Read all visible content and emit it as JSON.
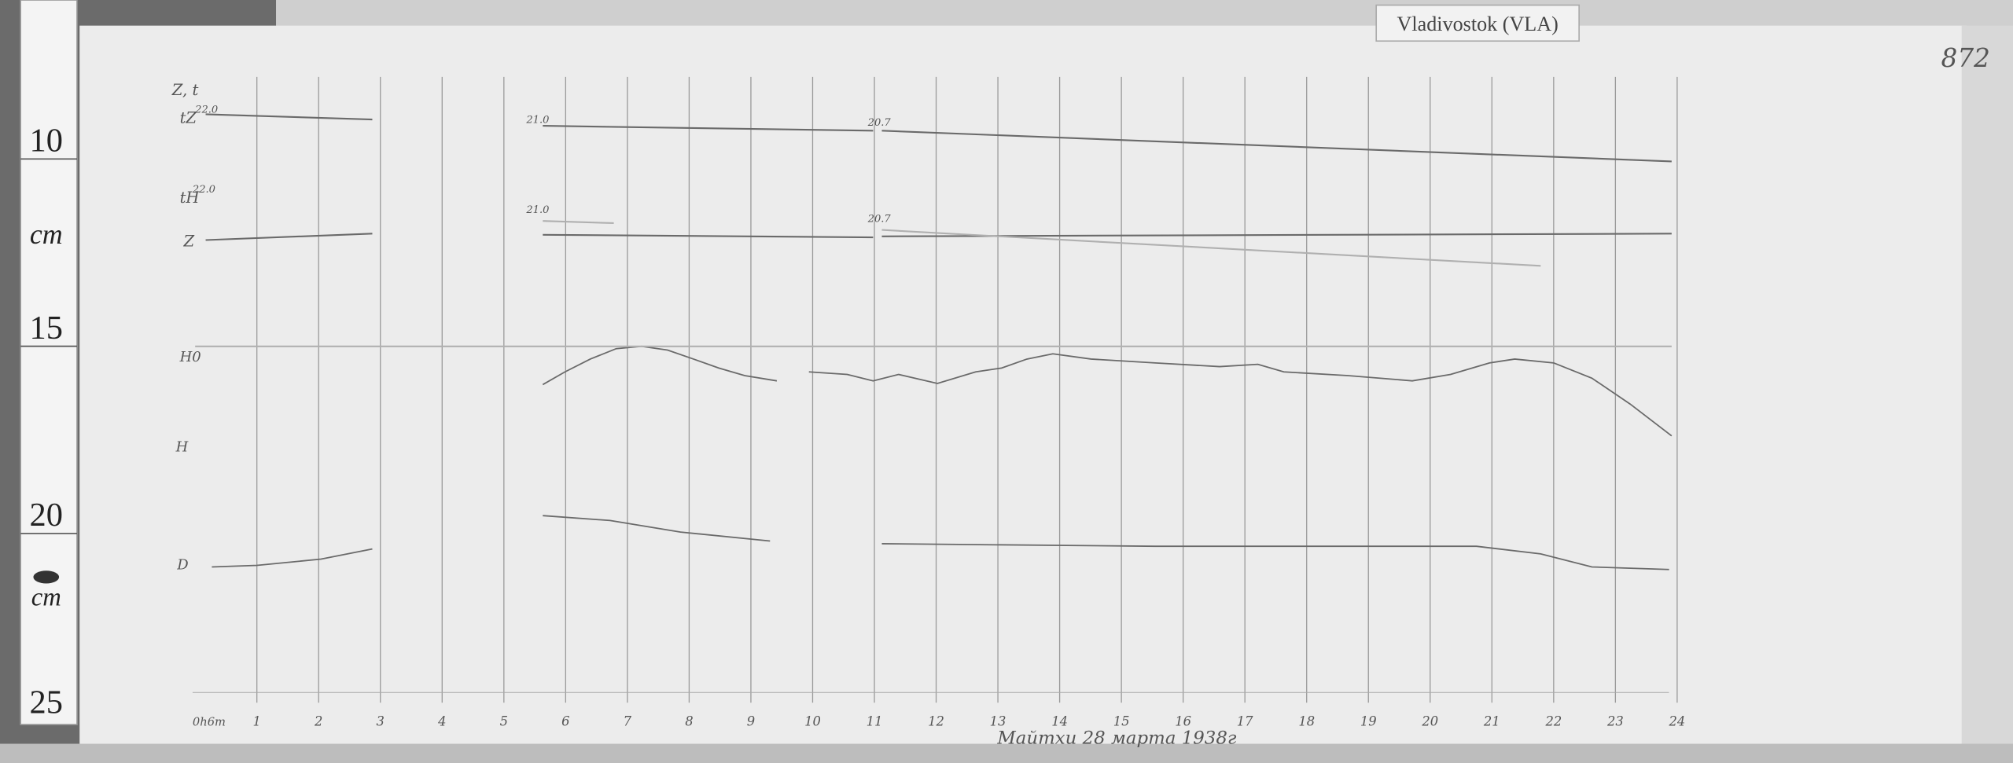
{
  "station_label": "Vladivostok (VLA)",
  "sheet_number": "872",
  "caption": "Майтхи 28 марта 1938г",
  "ruler": {
    "ticks": [
      "10",
      "15",
      "20",
      "25"
    ],
    "unit_top": "cm",
    "unit_bottom": "cm"
  },
  "colors": {
    "paper": "#ececec",
    "pencil": "#8a8a8a",
    "trace": "#6a6a6a",
    "background": "#6b6b6b"
  },
  "chart_data": {
    "type": "line",
    "title": "",
    "xlabel": "",
    "ylabel": "",
    "x_unit_label": "0h6m",
    "x_ticks": [
      "1",
      "2",
      "3",
      "4",
      "5",
      "6",
      "7",
      "8",
      "9",
      "10",
      "11",
      "12",
      "13",
      "14",
      "15",
      "16",
      "17",
      "18",
      "19",
      "20",
      "21",
      "22",
      "23",
      "24"
    ],
    "xlim": [
      0,
      24
    ],
    "ylim_ruler_cm": [
      8,
      26
    ],
    "grid": true,
    "row_labels": {
      "zt": "Z, t",
      "tz": "tZ",
      "th": "tH",
      "z": "Z",
      "h0": "H0",
      "h": "H",
      "d": "D"
    },
    "temperature_labels": [
      "22.0",
      "22.0",
      "21.0",
      "21.0",
      "20.7",
      "20.7"
    ],
    "series": [
      {
        "name": "H",
        "segments": [
          [
            [
              5.63,
              16.64
            ],
            [
              5.99,
              16.3
            ],
            [
              6.4,
              15.96
            ],
            [
              6.82,
              15.68
            ],
            [
              7.23,
              15.62
            ],
            [
              7.65,
              15.72
            ],
            [
              8.07,
              15.96
            ],
            [
              8.48,
              16.2
            ],
            [
              8.9,
              16.4
            ],
            [
              9.42,
              16.54
            ]
          ],
          [
            [
              9.94,
              16.3
            ],
            [
              10.56,
              16.37
            ],
            [
              10.98,
              16.54
            ],
            [
              11.39,
              16.37
            ],
            [
              12.02,
              16.61
            ],
            [
              12.64,
              16.3
            ],
            [
              13.06,
              16.2
            ],
            [
              13.47,
              15.96
            ],
            [
              13.89,
              15.82
            ],
            [
              14.51,
              15.96
            ],
            [
              15.55,
              16.06
            ],
            [
              16.59,
              16.16
            ],
            [
              17.21,
              16.1
            ],
            [
              17.63,
              16.3
            ],
            [
              18.67,
              16.4
            ],
            [
              19.71,
              16.54
            ],
            [
              20.33,
              16.37
            ],
            [
              20.96,
              16.06
            ],
            [
              21.37,
              15.96
            ],
            [
              22.0,
              16.06
            ],
            [
              22.62,
              16.47
            ],
            [
              23.24,
              17.16
            ],
            [
              23.91,
              18.01
            ]
          ]
        ]
      },
      {
        "name": "D",
        "segments": [
          [
            [
              0.27,
              21.51
            ],
            [
              1.0,
              21.47
            ],
            [
              2.04,
              21.3
            ],
            [
              2.87,
              21.03
            ]
          ],
          [
            [
              5.63,
              20.14
            ],
            [
              6.72,
              20.27
            ],
            [
              7.86,
              20.58
            ],
            [
              9.31,
              20.82
            ]
          ],
          [
            [
              11.12,
              20.89
            ],
            [
              15.55,
              20.96
            ],
            [
              20.75,
              20.96
            ],
            [
              21.79,
              21.16
            ],
            [
              22.62,
              21.51
            ],
            [
              23.87,
              21.58
            ]
          ]
        ]
      },
      {
        "name": "Z",
        "segments": [
          [
            [
              0.17,
              12.78
            ],
            [
              2.87,
              12.61
            ]
          ],
          [
            [
              5.63,
              12.64
            ],
            [
              10.98,
              12.71
            ]
          ],
          [
            [
              11.12,
              12.68
            ],
            [
              23.91,
              12.61
            ]
          ]
        ]
      },
      {
        "name": "tZ",
        "segments": [
          [
            [
              0.17,
              9.42
            ],
            [
              2.87,
              9.56
            ]
          ],
          [
            [
              5.63,
              9.73
            ],
            [
              10.98,
              9.86
            ]
          ],
          [
            [
              11.12,
              9.86
            ],
            [
              23.91,
              10.68
            ]
          ]
        ]
      },
      {
        "name": "tH",
        "segments": [
          [
            [
              5.63,
              12.27
            ],
            [
              6.78,
              12.33
            ]
          ],
          [
            [
              11.12,
              12.51
            ],
            [
              21.79,
              13.47
            ]
          ]
        ]
      },
      {
        "name": "H0",
        "segments": [
          [
            [
              0,
              15.62
            ],
            [
              23.91,
              15.62
            ]
          ]
        ]
      }
    ]
  }
}
